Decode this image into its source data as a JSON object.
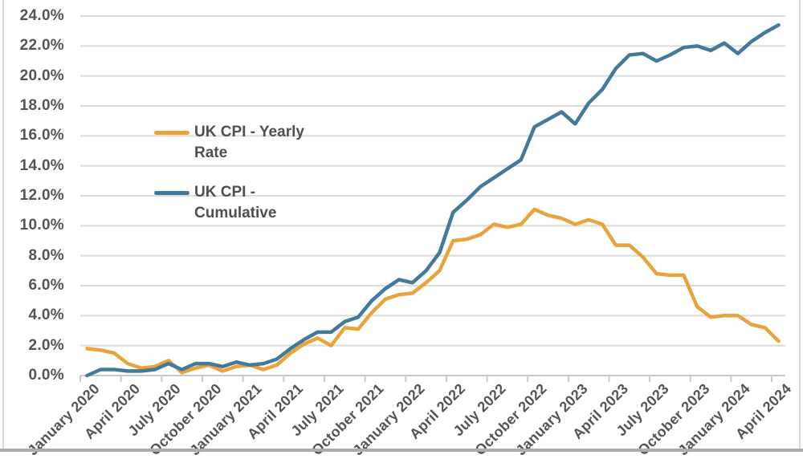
{
  "chart_data": {
    "type": "line",
    "title": "",
    "categories": [
      "Jan 2020",
      "Feb 2020",
      "Mar 2020",
      "Apr 2020",
      "May 2020",
      "Jun 2020",
      "Jul 2020",
      "Aug 2020",
      "Sep 2020",
      "Oct 2020",
      "Nov 2020",
      "Dec 2020",
      "Jan 2021",
      "Feb 2021",
      "Mar 2021",
      "Apr 2021",
      "May 2021",
      "Jun 2021",
      "Jul 2021",
      "Aug 2021",
      "Sep 2021",
      "Oct 2021",
      "Nov 2021",
      "Dec 2021",
      "Jan 2022",
      "Feb 2022",
      "Mar 2022",
      "Apr 2022",
      "May 2022",
      "Jun 2022",
      "Jul 2022",
      "Aug 2022",
      "Sep 2022",
      "Oct 2022",
      "Nov 2022",
      "Dec 2022",
      "Jan 2023",
      "Feb 2023",
      "Mar 2023",
      "Apr 2023",
      "May 2023",
      "Jun 2023",
      "Jul 2023",
      "Aug 2023",
      "Sep 2023",
      "Oct 2023",
      "Nov 2023",
      "Dec 2023",
      "Jan 2024",
      "Feb 2024",
      "Mar 2024",
      "Apr 2024"
    ],
    "series": [
      {
        "name": "UK CPI - Yearly Rate",
        "color": "#E8A33D",
        "values": [
          1.8,
          1.7,
          1.5,
          0.8,
          0.5,
          0.6,
          1.0,
          0.2,
          0.5,
          0.7,
          0.3,
          0.6,
          0.7,
          0.4,
          0.7,
          1.5,
          2.1,
          2.5,
          2.0,
          3.2,
          3.1,
          4.2,
          5.1,
          5.4,
          5.5,
          6.2,
          7.0,
          9.0,
          9.1,
          9.4,
          10.1,
          9.9,
          10.1,
          11.1,
          10.7,
          10.5,
          10.1,
          10.4,
          10.1,
          8.7,
          8.7,
          7.9,
          6.8,
          6.7,
          6.7,
          4.6,
          3.9,
          4.0,
          4.0,
          3.4,
          3.2,
          2.3
        ]
      },
      {
        "name": "UK CPI - Cumulative",
        "color": "#43799B",
        "values": [
          0.0,
          0.4,
          0.4,
          0.3,
          0.3,
          0.4,
          0.8,
          0.4,
          0.8,
          0.8,
          0.6,
          0.9,
          0.7,
          0.8,
          1.1,
          1.8,
          2.4,
          2.9,
          2.9,
          3.6,
          3.9,
          5.0,
          5.8,
          6.4,
          6.2,
          7.0,
          8.2,
          10.9,
          11.7,
          12.6,
          13.2,
          13.8,
          14.4,
          16.6,
          17.1,
          17.6,
          16.8,
          18.2,
          19.1,
          20.5,
          21.4,
          21.5,
          21.0,
          21.4,
          21.9,
          22.0,
          21.7,
          22.2,
          21.5,
          22.3,
          22.9,
          23.4
        ]
      }
    ],
    "ylim": [
      0,
      24
    ],
    "y_tick_step": 2,
    "y_tick_labels": [
      "0.0%",
      "2.0%",
      "4.0%",
      "6.0%",
      "8.0%",
      "10.0%",
      "12.0%",
      "14.0%",
      "16.0%",
      "18.0%",
      "20.0%",
      "22.0%",
      "24.0%"
    ],
    "x_tick_labels": [
      "January 2020",
      "April 2020",
      "July 2020",
      "October 2020",
      "January 2021",
      "April 2021",
      "July 2021",
      "October 2021",
      "January 2022",
      "April 2022",
      "July 2022",
      "October 2022",
      "January 2023",
      "April 2023",
      "July 2023",
      "October 2023",
      "January 2024",
      "April 2024"
    ],
    "x_tick_every": 3,
    "grid": "horizontal",
    "legend_position": "inside-top-left"
  },
  "legend": {
    "items": [
      {
        "line1": "UK CPI - Yearly",
        "line2": "Rate",
        "color": "#E8A33D"
      },
      {
        "line1": "UK CPI -",
        "line2": "Cumulative",
        "color": "#43799B"
      }
    ]
  },
  "colors": {
    "background": "#FFFFFF",
    "grid": "#DBDBDB",
    "axis": "#C9C9C9",
    "text": "#545454",
    "frame": "#D9D9D9",
    "bottom_bar": "#ACACAC"
  }
}
